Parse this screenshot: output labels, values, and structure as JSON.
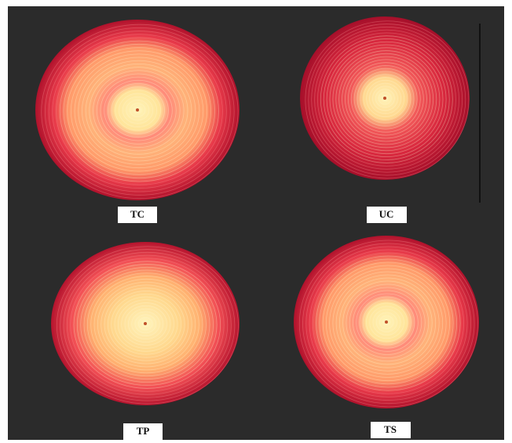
{
  "labels": [
    "TC",
    "UC",
    "TP",
    "TS"
  ]
}
